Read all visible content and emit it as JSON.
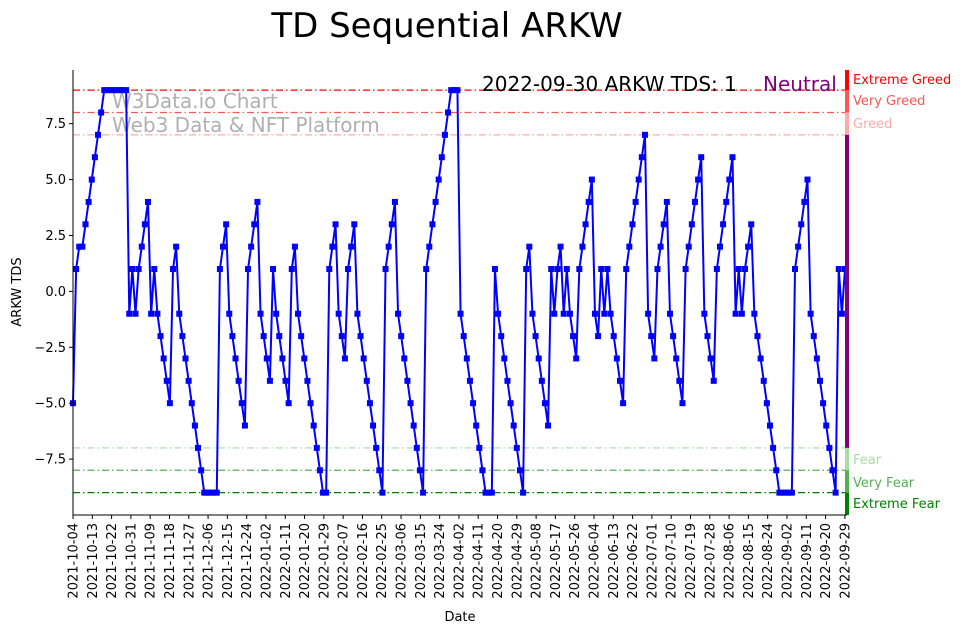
{
  "chart_data": {
    "type": "line",
    "title": "TD Sequential ARKW",
    "xlabel": "Date",
    "ylabel": "ARKW TDS",
    "x_start": "2021-10-04",
    "x_end": "2022-09-30",
    "ylim": [
      -10,
      9.9
    ],
    "yticks": [
      -7.5,
      -5.0,
      -2.5,
      0.0,
      2.5,
      5.0,
      7.5
    ],
    "ytick_labels": [
      "−7.5",
      "−5.0",
      "−2.5",
      "0.0",
      "2.5",
      "5.0",
      "7.5"
    ],
    "xtick_labels": [
      "2021-10-04",
      "2021-10-13",
      "2021-10-22",
      "2021-10-31",
      "2021-11-09",
      "2021-11-18",
      "2021-11-27",
      "2021-12-06",
      "2021-12-15",
      "2021-12-24",
      "2022-01-02",
      "2022-01-11",
      "2022-01-20",
      "2022-01-29",
      "2022-02-07",
      "2022-02-16",
      "2022-02-25",
      "2022-03-06",
      "2022-03-15",
      "2022-03-24",
      "2022-04-02",
      "2022-04-11",
      "2022-04-20",
      "2022-04-29",
      "2022-05-08",
      "2022-05-17",
      "2022-05-26",
      "2022-06-04",
      "2022-06-13",
      "2022-06-22",
      "2022-07-01",
      "2022-07-10",
      "2022-07-19",
      "2022-07-28",
      "2022-08-06",
      "2022-08-15",
      "2022-08-24",
      "2022-09-02",
      "2022-09-11",
      "2022-09-20",
      "2022-09-29"
    ],
    "series": [
      {
        "name": "ARKW TDS",
        "color": "#0000ff",
        "values": [
          -5,
          1,
          2,
          2,
          3,
          4,
          5,
          6,
          7,
          8,
          9,
          9,
          9,
          9,
          9,
          9,
          9,
          9,
          -1,
          1,
          -1,
          1,
          2,
          3,
          4,
          -1,
          1,
          -1,
          -2,
          -3,
          -4,
          -5,
          1,
          2,
          -1,
          -2,
          -3,
          -4,
          -5,
          -6,
          -7,
          -8,
          -9,
          -9,
          -9,
          -9,
          -9,
          1,
          2,
          3,
          -1,
          -2,
          -3,
          -4,
          -5,
          -6,
          1,
          2,
          3,
          4,
          -1,
          -2,
          -3,
          -4,
          1,
          -1,
          -2,
          -3,
          -4,
          -5,
          1,
          2,
          -1,
          -2,
          -3,
          -4,
          -5,
          -6,
          -7,
          -8,
          -9,
          -9,
          1,
          2,
          3,
          -1,
          -2,
          -3,
          1,
          2,
          3,
          -1,
          -2,
          -3,
          -4,
          -5,
          -6,
          -7,
          -8,
          -9,
          1,
          2,
          3,
          4,
          -1,
          -2,
          -3,
          -4,
          -5,
          -6,
          -7,
          -8,
          -9,
          1,
          2,
          3,
          4,
          5,
          6,
          7,
          8,
          9,
          9,
          9,
          -1,
          -2,
          -3,
          -4,
          -5,
          -6,
          -7,
          -8,
          -9,
          -9,
          -9,
          1,
          -1,
          -2,
          -3,
          -4,
          -5,
          -6,
          -7,
          -8,
          -9,
          1,
          2,
          -1,
          -2,
          -3,
          -4,
          -5,
          -6,
          1,
          -1,
          1,
          2,
          -1,
          1,
          -1,
          -2,
          -3,
          1,
          2,
          3,
          4,
          5,
          -1,
          -2,
          1,
          -1,
          1,
          -1,
          -2,
          -3,
          -4,
          -5,
          1,
          2,
          3,
          4,
          5,
          6,
          7,
          -1,
          -2,
          -3,
          1,
          2,
          3,
          4,
          -1,
          -2,
          -3,
          -4,
          -5,
          1,
          2,
          3,
          4,
          5,
          6,
          -1,
          -2,
          -3,
          -4,
          1,
          2,
          3,
          4,
          5,
          6,
          -1,
          1,
          -1,
          1,
          2,
          3,
          -1,
          -2,
          -3,
          -4,
          -5,
          -6,
          -7,
          -8,
          -9,
          -9,
          -9,
          -9,
          -9,
          1,
          2,
          3,
          4,
          5,
          -1,
          -2,
          -3,
          -4,
          -5,
          -6,
          -7,
          -8,
          -9,
          1,
          -1,
          1
        ]
      }
    ],
    "thresholds": [
      {
        "value": 9,
        "label": "Extreme Greed",
        "color": "#ff0000"
      },
      {
        "value": 8,
        "label": "Very Greed",
        "color": "#ff5555"
      },
      {
        "value": 7,
        "label": "Greed",
        "color": "#ffaaaa"
      },
      {
        "value": -7,
        "label": "Fear",
        "color": "#a8dca8"
      },
      {
        "value": -8,
        "label": "Very Fear",
        "color": "#55b055"
      },
      {
        "value": -9,
        "label": "Extreme Fear",
        "color": "#008000"
      }
    ],
    "neutral_color": "#800080",
    "annotation": "2022-09-30 ARKW TDS: 1",
    "status": "Neutral",
    "watermark": [
      "W3Data.io Chart",
      "Web3 Data & NFT Platform"
    ],
    "grid": false
  }
}
